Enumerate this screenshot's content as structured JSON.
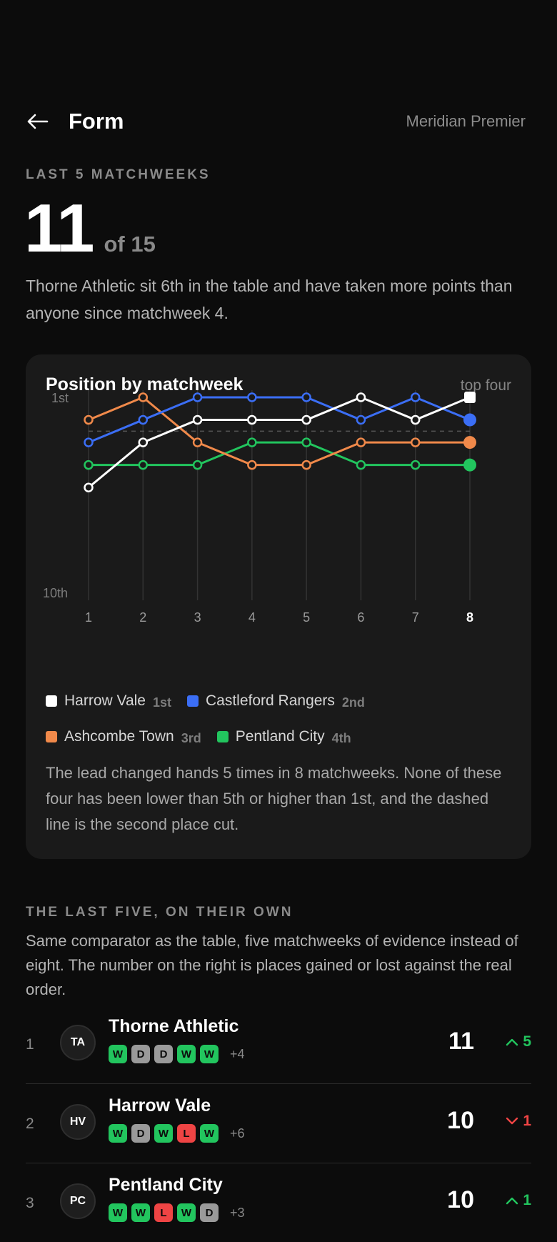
{
  "header": {
    "title": "Form",
    "league": "Meridian Premier"
  },
  "hero": {
    "eyebrow": "LAST 5 MATCHWEEKS",
    "value": "11",
    "of_label": "of 15",
    "description": "Thorne Athletic sit 6th in the table and have taken more points than anyone since matchweek 4."
  },
  "card": {
    "title": "Position by matchweek",
    "tag": "top four",
    "note": "The lead changed hands 5 times in 8 matchweeks. None of these four has been lower than 5th or higher than 1st, and the dashed line is the second place cut."
  },
  "chart_data": {
    "type": "line",
    "x": [
      1,
      2,
      3,
      4,
      5,
      6,
      7,
      8
    ],
    "y_axis": {
      "top_label": "1st",
      "bottom_label": "10th",
      "range": [
        1,
        10
      ],
      "inverted": true
    },
    "reference_line": {
      "value": 2.5,
      "style": "dashed"
    },
    "highlight_x": 8,
    "series": [
      {
        "name": "Harrow Vale",
        "rank": "1st",
        "color": "#ffffff",
        "values": [
          5,
          3,
          2,
          2,
          2,
          1,
          2,
          1
        ]
      },
      {
        "name": "Castleford Rangers",
        "rank": "2nd",
        "color": "#3b6ef5",
        "values": [
          3,
          2,
          1,
          1,
          1,
          2,
          1,
          2
        ]
      },
      {
        "name": "Ashcombe Town",
        "rank": "3rd",
        "color": "#f0894a",
        "values": [
          2,
          1,
          3,
          4,
          4,
          3,
          3,
          3
        ]
      },
      {
        "name": "Pentland City",
        "rank": "4th",
        "color": "#22c55e",
        "values": [
          4,
          4,
          4,
          3,
          3,
          4,
          4,
          4
        ]
      }
    ]
  },
  "section": {
    "eyebrow": "THE LAST FIVE, ON THEIR OWN",
    "text": "Same comparator as the table, five matchweeks of evidence instead of eight. The number on the right is places gained or lost against the real order."
  },
  "rows": [
    {
      "pos": "1",
      "initials": "TA",
      "team": "Thorne Athletic",
      "form": [
        "W",
        "D",
        "D",
        "W",
        "W"
      ],
      "gd": "+4",
      "points": "11",
      "move": "5",
      "direction": "up"
    },
    {
      "pos": "2",
      "initials": "HV",
      "team": "Harrow Vale",
      "form": [
        "W",
        "D",
        "W",
        "L",
        "W"
      ],
      "gd": "+6",
      "points": "10",
      "move": "1",
      "direction": "down"
    },
    {
      "pos": "3",
      "initials": "PC",
      "team": "Pentland City",
      "form": [
        "W",
        "W",
        "L",
        "W",
        "D"
      ],
      "gd": "+3",
      "points": "10",
      "move": "1",
      "direction": "up"
    }
  ]
}
